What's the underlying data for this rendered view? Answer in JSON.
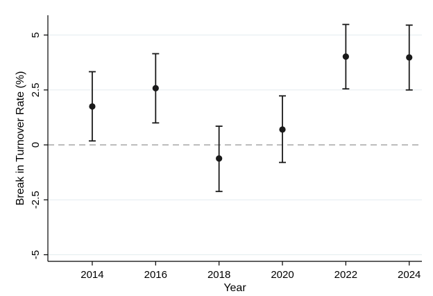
{
  "chart_data": {
    "type": "scatter",
    "xlabel": "Year",
    "ylabel": "Break in Turnover Rate (%)",
    "xlim": [
      2012.6,
      2024.4
    ],
    "ylim": [
      -5.3,
      5.9
    ],
    "x_ticks": [
      2014,
      2016,
      2018,
      2020,
      2022,
      2024
    ],
    "y_ticks": [
      -5,
      -2.5,
      0,
      2.5,
      5
    ],
    "y_tick_labels": [
      "-5",
      "-2.5",
      "0",
      "2.5",
      "5"
    ],
    "grid": true,
    "reference_line_y": 0,
    "points": [
      {
        "x": 2014,
        "y": 1.75,
        "ci_low": 0.18,
        "ci_high": 3.33
      },
      {
        "x": 2016,
        "y": 2.58,
        "ci_low": 1.0,
        "ci_high": 4.15
      },
      {
        "x": 2018,
        "y": -0.62,
        "ci_low": -2.12,
        "ci_high": 0.85
      },
      {
        "x": 2020,
        "y": 0.7,
        "ci_low": -0.8,
        "ci_high": 2.23
      },
      {
        "x": 2022,
        "y": 4.02,
        "ci_low": 2.55,
        "ci_high": 5.48
      },
      {
        "x": 2024,
        "y": 3.98,
        "ci_low": 2.5,
        "ci_high": 5.45
      }
    ],
    "colors": {
      "marker": "#1a1a1a",
      "grid": "#e3ecef",
      "reference_line": "#a6a6a6",
      "axis": "#000000"
    }
  }
}
